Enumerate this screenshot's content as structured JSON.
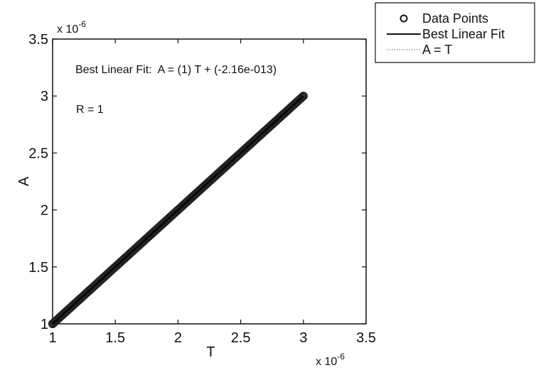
{
  "chart_data": {
    "type": "scatter",
    "title": "",
    "xlabel": "T",
    "ylabel": "A",
    "xlim": [
      1,
      3.5
    ],
    "ylim": [
      1,
      3.5
    ],
    "x_multiplier": "x 10",
    "x_multiplier_exp": "-6",
    "y_multiplier": "x 10",
    "y_multiplier_exp": "-6",
    "xticks": [
      1,
      1.5,
      2,
      2.5,
      3,
      3.5
    ],
    "yticks": [
      1,
      1.5,
      2,
      2.5,
      3,
      3.5
    ],
    "xtick_labels": [
      "1",
      "1.5",
      "2",
      "2.5",
      "3",
      "3.5"
    ],
    "ytick_labels": [
      "1",
      "1.5",
      "2",
      "2.5",
      "3",
      "3.5"
    ],
    "grid": false,
    "legend_position": "outside-top-right",
    "series": [
      {
        "name": "Data Points",
        "kind": "markers",
        "marker": "circle",
        "x_range": [
          1,
          3
        ],
        "count": 200
      },
      {
        "name": "Best Linear Fit",
        "kind": "line",
        "style": "solid",
        "x": [
          1,
          3
        ],
        "y": [
          1,
          3
        ]
      },
      {
        "name": "A = T",
        "kind": "line",
        "style": "dotted",
        "x": [
          1,
          3
        ],
        "y": [
          1,
          3
        ]
      }
    ],
    "annotations": [
      {
        "id": "fit",
        "text": "Best Linear Fit:  A = (1) T + (-2.16e-013)"
      },
      {
        "id": "r",
        "text": "R = 1"
      }
    ],
    "colors": {
      "axes": "#111111",
      "markers": "#222222",
      "fit_line": "#000000",
      "identity_line": "#999999"
    }
  }
}
